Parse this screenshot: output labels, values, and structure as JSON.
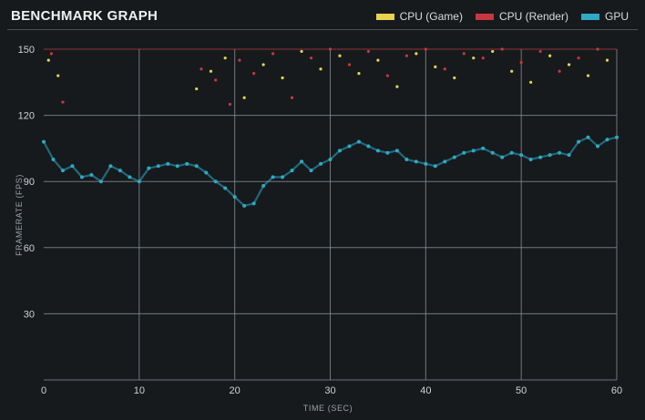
{
  "header": {
    "title": "BENCHMARK GRAPH"
  },
  "legend": [
    {
      "label": "CPU (Game)",
      "color": "#e8d44d"
    },
    {
      "label": "CPU (Render)",
      "color": "#c8373d"
    },
    {
      "label": "GPU",
      "color": "#2fa9c4"
    }
  ],
  "chart_data": {
    "type": "scatter",
    "title": "BENCHMARK GRAPH",
    "xlabel": "TIME (SEC)",
    "ylabel": "FRAMERATE (FPS)",
    "xlim": [
      0,
      60
    ],
    "ylim": [
      0,
      150
    ],
    "x_ticks": [
      0,
      10,
      20,
      30,
      40,
      50,
      60
    ],
    "y_ticks": [
      30,
      60,
      90,
      120,
      150
    ],
    "grid": true,
    "legend_position": "top-right",
    "series": [
      {
        "name": "GPU",
        "color": "#2fa9c4",
        "x": [
          0,
          1,
          2,
          3,
          4,
          5,
          6,
          7,
          8,
          9,
          10,
          11,
          12,
          13,
          14,
          15,
          16,
          17,
          18,
          19,
          20,
          21,
          22,
          23,
          24,
          25,
          26,
          27,
          28,
          29,
          30,
          31,
          32,
          33,
          34,
          35,
          36,
          37,
          38,
          39,
          40,
          41,
          42,
          43,
          44,
          45,
          46,
          47,
          48,
          49,
          50,
          51,
          52,
          53,
          54,
          55,
          56,
          57,
          58,
          59,
          60
        ],
        "y": [
          108,
          100,
          95,
          97,
          92,
          93,
          90,
          97,
          95,
          92,
          90,
          96,
          97,
          98,
          97,
          98,
          97,
          94,
          90,
          87,
          83,
          79,
          80,
          88,
          92,
          92,
          95,
          99,
          95,
          98,
          100,
          104,
          106,
          108,
          106,
          104,
          103,
          104,
          100,
          99,
          98,
          97,
          99,
          101,
          103,
          104,
          105,
          103,
          101,
          103,
          102,
          100,
          101,
          102,
          103,
          102,
          108,
          110,
          106,
          109,
          110
        ]
      },
      {
        "name": "CPU (Game)",
        "color": "#e8d44d",
        "x": [
          0.5,
          1.5,
          16,
          17.5,
          19,
          21,
          23,
          25,
          27,
          29,
          31,
          33,
          35,
          37,
          39,
          41,
          43,
          45,
          47,
          49,
          51,
          53,
          55,
          57,
          59
        ],
        "y": [
          145,
          138,
          132,
          140,
          146,
          128,
          143,
          137,
          149,
          141,
          147,
          139,
          145,
          133,
          148,
          142,
          137,
          146,
          149,
          140,
          135,
          147,
          143,
          138,
          145
        ]
      },
      {
        "name": "CPU (Render)",
        "color": "#c8373d",
        "x": [
          0.8,
          2,
          16.5,
          18,
          19.5,
          20.5,
          22,
          24,
          26,
          28,
          30,
          32,
          34,
          36,
          38,
          40,
          42,
          44,
          46,
          48,
          50,
          52,
          54,
          56,
          58
        ],
        "y": [
          148,
          126,
          141,
          136,
          125,
          145,
          139,
          148,
          128,
          146,
          150,
          143,
          149,
          138,
          147,
          150,
          141,
          148,
          146,
          150,
          144,
          149,
          140,
          146,
          150
        ]
      }
    ]
  }
}
